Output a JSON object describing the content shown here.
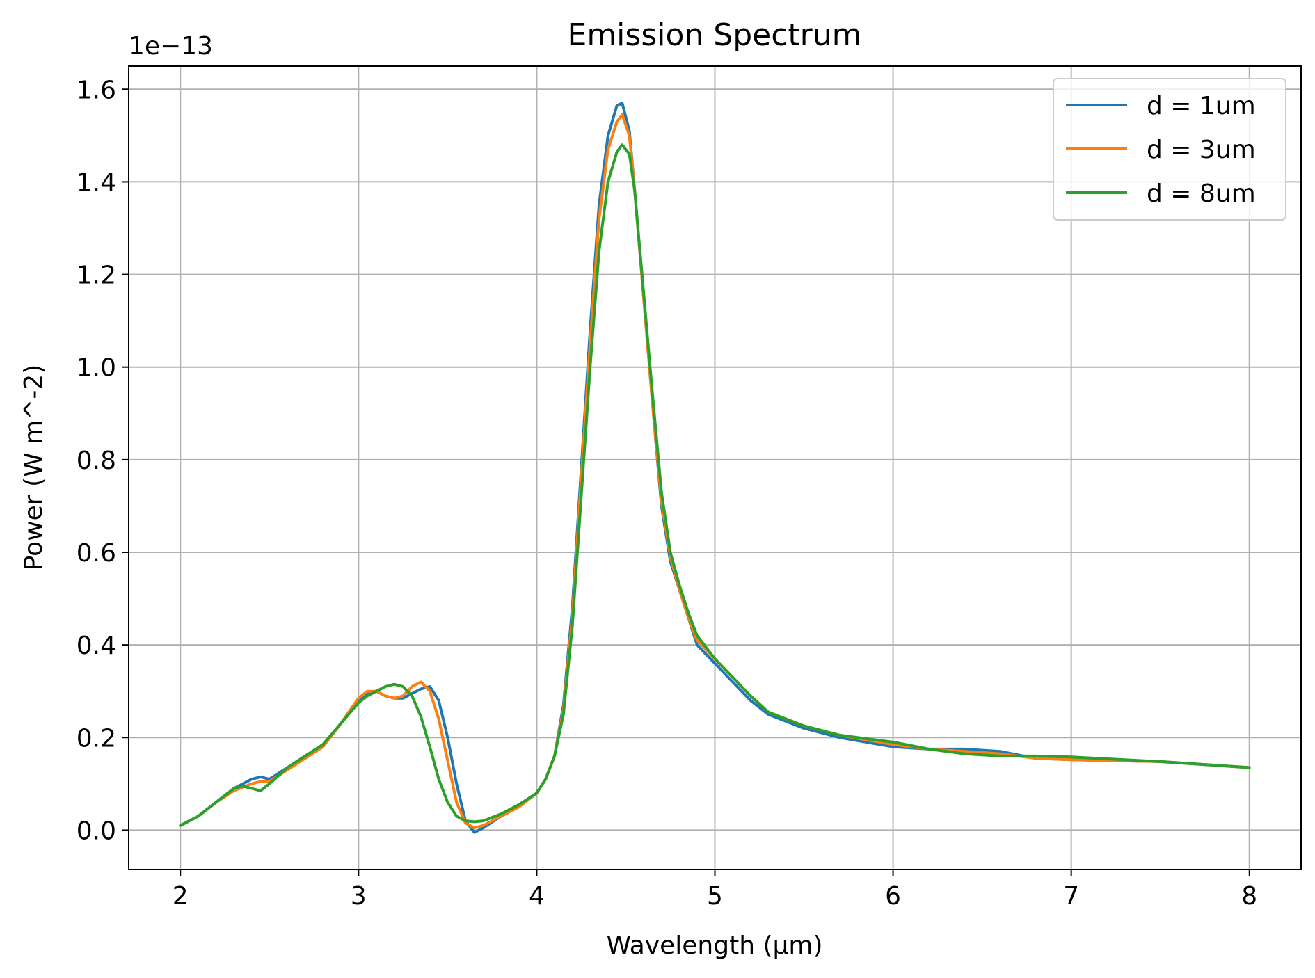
{
  "chart_data": {
    "type": "line",
    "title": "Emission Spectrum",
    "xlabel": "Wavelength (µm)",
    "ylabel": "Power (W m^-2)",
    "offset_text": "1e−13",
    "xlim": [
      1.71,
      8.29
    ],
    "ylim": [
      -0.085,
      1.65
    ],
    "xticks": [
      2,
      3,
      4,
      5,
      6,
      7,
      8
    ],
    "xtick_labels": [
      "2",
      "3",
      "4",
      "5",
      "6",
      "7",
      "8"
    ],
    "yticks": [
      0.0,
      0.2,
      0.4,
      0.6,
      0.8,
      1.0,
      1.2,
      1.4,
      1.6
    ],
    "ytick_labels": [
      "0.0",
      "0.2",
      "0.4",
      "0.6",
      "0.8",
      "1.0",
      "1.2",
      "1.4",
      "1.6"
    ],
    "grid": true,
    "legend_position": "top-right",
    "series": [
      {
        "name": "d = 1um",
        "color": "#1f77b4",
        "x": [
          2.0,
          2.1,
          2.2,
          2.3,
          2.4,
          2.45,
          2.5,
          2.6,
          2.7,
          2.8,
          2.9,
          3.0,
          3.05,
          3.1,
          3.15,
          3.2,
          3.25,
          3.3,
          3.35,
          3.4,
          3.45,
          3.5,
          3.55,
          3.6,
          3.65,
          3.7,
          3.8,
          3.9,
          4.0,
          4.05,
          4.1,
          4.15,
          4.2,
          4.25,
          4.3,
          4.35,
          4.4,
          4.45,
          4.48,
          4.52,
          4.55,
          4.6,
          4.65,
          4.7,
          4.75,
          4.8,
          4.85,
          4.9,
          5.0,
          5.1,
          5.2,
          5.3,
          5.5,
          5.7,
          6.0,
          6.2,
          6.4,
          6.6,
          6.8,
          7.0,
          7.5,
          8.0
        ],
        "y": [
          0.01,
          0.03,
          0.06,
          0.09,
          0.11,
          0.115,
          0.11,
          0.135,
          0.155,
          0.18,
          0.23,
          0.28,
          0.295,
          0.3,
          0.29,
          0.285,
          0.285,
          0.295,
          0.305,
          0.31,
          0.28,
          0.2,
          0.1,
          0.02,
          -0.005,
          0.005,
          0.03,
          0.05,
          0.08,
          0.11,
          0.16,
          0.27,
          0.48,
          0.78,
          1.08,
          1.35,
          1.5,
          1.565,
          1.57,
          1.51,
          1.38,
          1.15,
          0.92,
          0.7,
          0.58,
          0.52,
          0.46,
          0.4,
          0.36,
          0.32,
          0.28,
          0.25,
          0.22,
          0.2,
          0.18,
          0.175,
          0.175,
          0.17,
          0.155,
          0.152,
          0.148,
          0.135
        ]
      },
      {
        "name": "d = 3um",
        "color": "#ff7f0e",
        "x": [
          2.0,
          2.1,
          2.2,
          2.3,
          2.4,
          2.45,
          2.5,
          2.6,
          2.7,
          2.8,
          2.9,
          3.0,
          3.05,
          3.1,
          3.15,
          3.2,
          3.25,
          3.3,
          3.35,
          3.4,
          3.45,
          3.5,
          3.55,
          3.6,
          3.65,
          3.7,
          3.8,
          3.9,
          4.0,
          4.05,
          4.1,
          4.15,
          4.2,
          4.25,
          4.3,
          4.35,
          4.4,
          4.45,
          4.48,
          4.52,
          4.55,
          4.6,
          4.65,
          4.7,
          4.75,
          4.8,
          4.85,
          4.9,
          5.0,
          5.1,
          5.2,
          5.3,
          5.5,
          5.7,
          6.0,
          6.2,
          6.4,
          6.6,
          6.8,
          7.0,
          7.5,
          8.0
        ],
        "y": [
          0.01,
          0.03,
          0.06,
          0.085,
          0.1,
          0.105,
          0.105,
          0.13,
          0.155,
          0.18,
          0.23,
          0.285,
          0.3,
          0.3,
          0.29,
          0.285,
          0.29,
          0.31,
          0.32,
          0.3,
          0.24,
          0.15,
          0.06,
          0.015,
          0.005,
          0.01,
          0.03,
          0.05,
          0.08,
          0.11,
          0.16,
          0.26,
          0.46,
          0.76,
          1.05,
          1.32,
          1.47,
          1.53,
          1.545,
          1.5,
          1.38,
          1.15,
          0.92,
          0.71,
          0.59,
          0.52,
          0.46,
          0.41,
          0.37,
          0.33,
          0.29,
          0.255,
          0.225,
          0.205,
          0.185,
          0.175,
          0.17,
          0.165,
          0.155,
          0.152,
          0.148,
          0.135
        ]
      },
      {
        "name": "d = 8um",
        "color": "#2ca02c",
        "x": [
          2.0,
          2.1,
          2.2,
          2.3,
          2.35,
          2.4,
          2.45,
          2.5,
          2.6,
          2.7,
          2.8,
          2.9,
          3.0,
          3.05,
          3.1,
          3.15,
          3.2,
          3.25,
          3.3,
          3.35,
          3.4,
          3.45,
          3.5,
          3.55,
          3.6,
          3.65,
          3.7,
          3.8,
          3.9,
          4.0,
          4.05,
          4.1,
          4.15,
          4.2,
          4.25,
          4.3,
          4.35,
          4.4,
          4.45,
          4.48,
          4.52,
          4.55,
          4.6,
          4.65,
          4.7,
          4.75,
          4.8,
          4.85,
          4.9,
          5.0,
          5.1,
          5.2,
          5.3,
          5.5,
          5.7,
          6.0,
          6.2,
          6.4,
          6.6,
          6.8,
          7.0,
          7.5,
          8.0
        ],
        "y": [
          0.01,
          0.03,
          0.06,
          0.09,
          0.095,
          0.09,
          0.085,
          0.1,
          0.135,
          0.16,
          0.185,
          0.23,
          0.275,
          0.29,
          0.3,
          0.31,
          0.315,
          0.31,
          0.29,
          0.245,
          0.18,
          0.11,
          0.06,
          0.03,
          0.02,
          0.018,
          0.02,
          0.035,
          0.055,
          0.08,
          0.11,
          0.16,
          0.25,
          0.44,
          0.72,
          1.0,
          1.25,
          1.4,
          1.465,
          1.48,
          1.46,
          1.38,
          1.16,
          0.94,
          0.73,
          0.6,
          0.53,
          0.47,
          0.42,
          0.37,
          0.33,
          0.29,
          0.255,
          0.225,
          0.205,
          0.19,
          0.175,
          0.165,
          0.16,
          0.16,
          0.158,
          0.148,
          0.135
        ]
      }
    ]
  }
}
